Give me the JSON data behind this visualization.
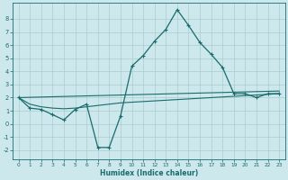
{
  "xlabel": "Humidex (Indice chaleur)",
  "background_color": "#cce8ec",
  "grid_color": "#aacccc",
  "line_color": "#1a6b6b",
  "xlim": [
    -0.5,
    23.5
  ],
  "ylim": [
    -2.7,
    9.2
  ],
  "xticks": [
    0,
    1,
    2,
    3,
    4,
    5,
    6,
    7,
    8,
    9,
    10,
    11,
    12,
    13,
    14,
    15,
    16,
    17,
    18,
    19,
    20,
    21,
    22,
    23
  ],
  "yticks": [
    -2,
    -1,
    0,
    1,
    2,
    3,
    4,
    5,
    6,
    7,
    8
  ],
  "main_curve_x": [
    0,
    1,
    2,
    3,
    4,
    5,
    6,
    7,
    8,
    9,
    10,
    11,
    12,
    13,
    14,
    15,
    16,
    17,
    18,
    19,
    20,
    21,
    22,
    23
  ],
  "main_curve_y": [
    2.0,
    1.2,
    1.1,
    0.7,
    0.3,
    1.1,
    1.5,
    -1.8,
    -1.8,
    0.6,
    4.4,
    5.2,
    6.3,
    7.2,
    8.7,
    7.5,
    6.2,
    5.3,
    4.3,
    2.3,
    2.3,
    2.0,
    2.3,
    2.3
  ],
  "trend1_x": [
    0,
    1,
    2,
    3,
    4,
    5,
    6,
    7,
    8,
    9,
    10,
    11,
    12,
    13,
    14,
    15,
    16,
    17,
    18,
    19,
    20,
    21,
    22,
    23
  ],
  "trend1_y": [
    2.0,
    1.5,
    1.3,
    1.2,
    1.15,
    1.2,
    1.3,
    1.4,
    1.5,
    1.6,
    1.65,
    1.7,
    1.75,
    1.8,
    1.85,
    1.9,
    1.95,
    2.0,
    2.05,
    2.1,
    2.15,
    2.2,
    2.25,
    2.3
  ],
  "trend2_x": [
    0,
    23
  ],
  "trend2_y": [
    2.0,
    2.5
  ]
}
